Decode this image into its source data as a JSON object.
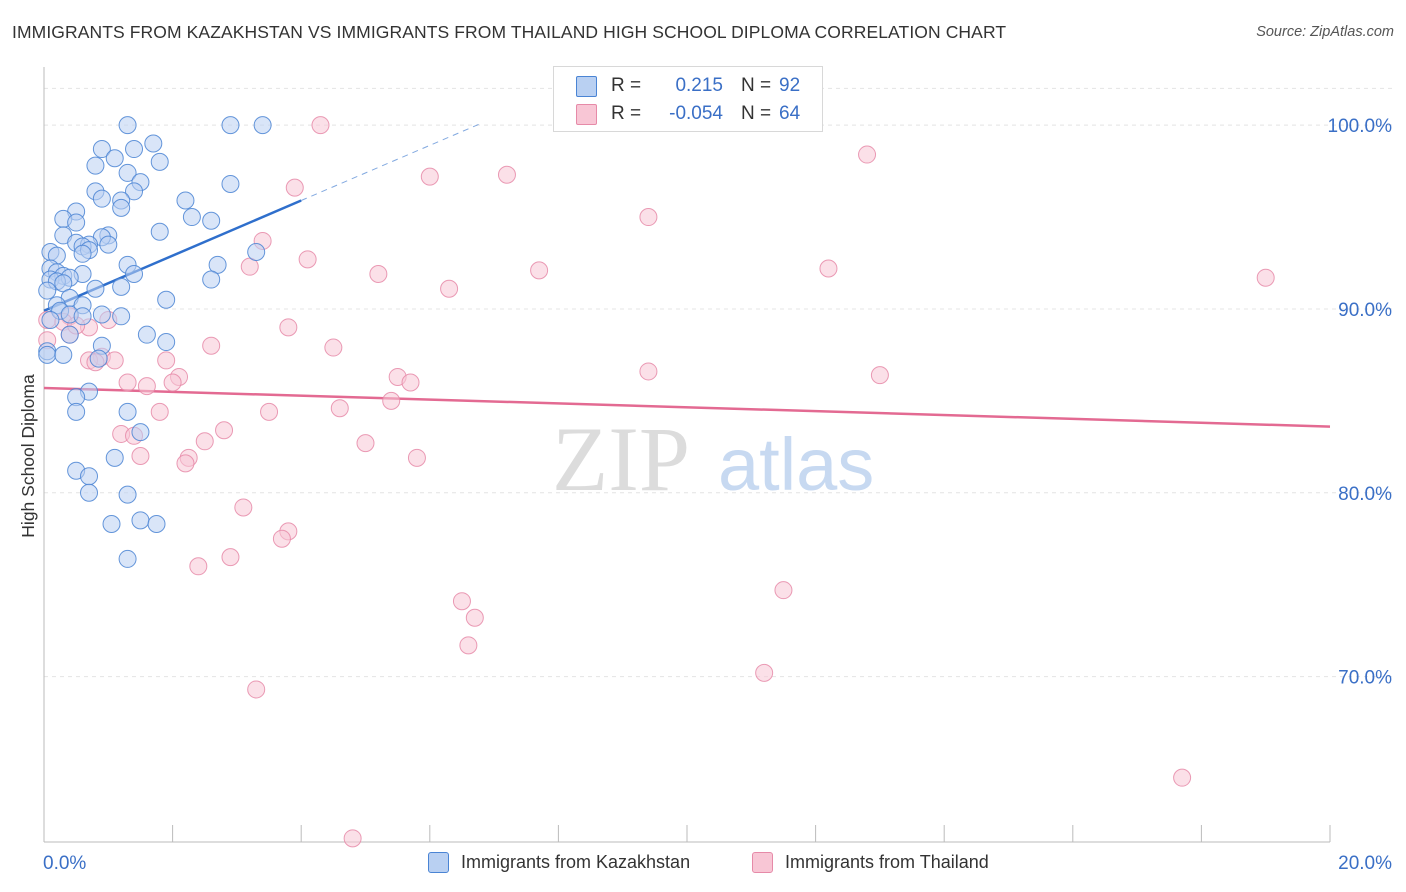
{
  "title": "IMMIGRANTS FROM KAZAKHSTAN VS IMMIGRANTS FROM THAILAND HIGH SCHOOL DIPLOMA CORRELATION CHART",
  "source": "Source: ZipAtlas.com",
  "watermark": {
    "zip": "ZIP",
    "atlas": "atlas"
  },
  "colors": {
    "blue_fill": "#b9d0f2",
    "blue_stroke": "#4a84d4",
    "blue_line": "#2f6fcc",
    "pink_fill": "#f8c6d5",
    "pink_stroke": "#e68aa8",
    "pink_line": "#e36a92",
    "axis_text": "#3a6fc6",
    "grid": "#e4e4e4"
  },
  "legend": {
    "rows": [
      {
        "r_label": "R =",
        "r_value": "0.215",
        "n_label": "N =",
        "n_value": "92"
      },
      {
        "r_label": "R =",
        "r_value": "-0.054",
        "n_label": "N =",
        "n_value": "64"
      }
    ]
  },
  "bottom_legend": [
    {
      "label": "Immigrants from Kazakhstan"
    },
    {
      "label": "Immigrants from Thailand"
    }
  ],
  "chart_data": {
    "type": "scatter",
    "title": "IMMIGRANTS FROM KAZAKHSTAN VS IMMIGRANTS FROM THAILAND HIGH SCHOOL DIPLOMA CORRELATION CHART",
    "xlabel": "",
    "ylabel": "High School Diploma",
    "xlim": [
      0,
      20
    ],
    "ylim": [
      61,
      103
    ],
    "x_tick_labels": [
      "0.0%",
      "20.0%"
    ],
    "y_ticks": [
      100,
      90,
      80,
      70
    ],
    "y_tick_labels": [
      "100.0%",
      "90.0%",
      "80.0%",
      "70.0%"
    ],
    "grid": true,
    "series": [
      {
        "name": "Immigrants from Kazakhstan",
        "R": 0.215,
        "N": 92,
        "trend": {
          "x0": 0.0,
          "y0": 89.9,
          "x1": 4.0,
          "y1": 95.9,
          "dash_to_x": 6.8,
          "dash_to_y": 100.1
        },
        "points": [
          [
            1.3,
            100
          ],
          [
            2.9,
            100
          ],
          [
            3.4,
            100
          ],
          [
            1.7,
            99
          ],
          [
            0.9,
            98.7
          ],
          [
            1.4,
            98.7
          ],
          [
            1.1,
            98.2
          ],
          [
            1.8,
            98
          ],
          [
            0.8,
            97.8
          ],
          [
            1.3,
            97.4
          ],
          [
            1.5,
            96.9
          ],
          [
            2.9,
            96.8
          ],
          [
            0.8,
            96.4
          ],
          [
            1.4,
            96.4
          ],
          [
            0.9,
            96
          ],
          [
            1.2,
            95.9
          ],
          [
            2.2,
            95.9
          ],
          [
            1.2,
            95.5
          ],
          [
            0.5,
            95.3
          ],
          [
            0.3,
            94.9
          ],
          [
            2.3,
            95
          ],
          [
            2.6,
            94.8
          ],
          [
            0.5,
            94.7
          ],
          [
            1.8,
            94.2
          ],
          [
            0.3,
            94
          ],
          [
            1.0,
            94
          ],
          [
            0.9,
            93.9
          ],
          [
            0.5,
            93.6
          ],
          [
            1.0,
            93.5
          ],
          [
            0.7,
            93.5
          ],
          [
            0.6,
            93.4
          ],
          [
            0.7,
            93.2
          ],
          [
            3.3,
            93.1
          ],
          [
            0.1,
            93.1
          ],
          [
            0.6,
            93
          ],
          [
            0.2,
            92.9
          ],
          [
            1.3,
            92.4
          ],
          [
            2.7,
            92.4
          ],
          [
            0.1,
            92.2
          ],
          [
            0.2,
            92
          ],
          [
            0.6,
            91.9
          ],
          [
            1.4,
            91.9
          ],
          [
            0.3,
            91.8
          ],
          [
            0.4,
            91.7
          ],
          [
            0.1,
            91.6
          ],
          [
            2.6,
            91.6
          ],
          [
            0.2,
            91.5
          ],
          [
            0.3,
            91.4
          ],
          [
            1.2,
            91.2
          ],
          [
            0.8,
            91.1
          ],
          [
            0.05,
            91
          ],
          [
            0.4,
            90.6
          ],
          [
            1.9,
            90.5
          ],
          [
            0.2,
            90.2
          ],
          [
            0.6,
            90.2
          ],
          [
            0.25,
            89.9
          ],
          [
            0.4,
            89.7
          ],
          [
            0.9,
            89.7
          ],
          [
            0.6,
            89.6
          ],
          [
            1.2,
            89.6
          ],
          [
            0.1,
            89.4
          ],
          [
            0.4,
            88.6
          ],
          [
            1.6,
            88.6
          ],
          [
            1.9,
            88.2
          ],
          [
            0.9,
            88
          ],
          [
            0.05,
            87.7
          ],
          [
            0.05,
            87.5
          ],
          [
            0.3,
            87.5
          ],
          [
            0.85,
            87.3
          ],
          [
            0.7,
            85.5
          ],
          [
            0.5,
            85.2
          ],
          [
            0.5,
            84.4
          ],
          [
            1.3,
            84.4
          ],
          [
            1.5,
            83.3
          ],
          [
            1.1,
            81.9
          ],
          [
            0.5,
            81.2
          ],
          [
            0.7,
            80.9
          ],
          [
            0.7,
            80
          ],
          [
            1.3,
            79.9
          ],
          [
            1.5,
            78.5
          ],
          [
            1.75,
            78.3
          ],
          [
            1.05,
            78.3
          ],
          [
            1.3,
            76.4
          ]
        ]
      },
      {
        "name": "Immigrants from Thailand",
        "R": -0.054,
        "N": 64,
        "trend": {
          "x0": 0.0,
          "y0": 85.7,
          "x1": 20.0,
          "y1": 83.6
        },
        "points": [
          [
            4.3,
            100
          ],
          [
            12.8,
            98.4
          ],
          [
            7.2,
            97.3
          ],
          [
            6.0,
            97.2
          ],
          [
            3.9,
            96.6
          ],
          [
            9.4,
            95
          ],
          [
            3.4,
            93.7
          ],
          [
            4.1,
            92.7
          ],
          [
            3.2,
            92.3
          ],
          [
            12.2,
            92.2
          ],
          [
            7.7,
            92.1
          ],
          [
            5.2,
            91.9
          ],
          [
            19.0,
            91.7
          ],
          [
            6.3,
            91.1
          ],
          [
            0.4,
            89.6
          ],
          [
            0.05,
            89.4
          ],
          [
            0.3,
            89.3
          ],
          [
            0.7,
            89
          ],
          [
            3.8,
            89
          ],
          [
            0.4,
            88.6
          ],
          [
            2.6,
            88
          ],
          [
            4.5,
            87.9
          ],
          [
            0.9,
            87.4
          ],
          [
            1.1,
            87.2
          ],
          [
            0.7,
            87.2
          ],
          [
            0.8,
            87.1
          ],
          [
            1.9,
            87.2
          ],
          [
            9.4,
            86.6
          ],
          [
            2.1,
            86.3
          ],
          [
            13.0,
            86.4
          ],
          [
            5.5,
            86.3
          ],
          [
            5.7,
            86
          ],
          [
            1.3,
            86
          ],
          [
            1.6,
            85.8
          ],
          [
            2.0,
            86
          ],
          [
            5.4,
            85
          ],
          [
            4.6,
            84.6
          ],
          [
            1.8,
            84.4
          ],
          [
            3.5,
            84.4
          ],
          [
            1.2,
            83.2
          ],
          [
            2.8,
            83.4
          ],
          [
            1.4,
            83.1
          ],
          [
            2.5,
            82.8
          ],
          [
            5.0,
            82.7
          ],
          [
            1.5,
            82
          ],
          [
            2.25,
            81.9
          ],
          [
            2.2,
            81.6
          ],
          [
            5.8,
            81.9
          ],
          [
            3.1,
            79.2
          ],
          [
            3.8,
            77.9
          ],
          [
            3.7,
            77.5
          ],
          [
            2.9,
            76.5
          ],
          [
            2.4,
            76
          ],
          [
            11.5,
            74.7
          ],
          [
            6.5,
            74.1
          ],
          [
            6.7,
            73.2
          ],
          [
            6.6,
            71.7
          ],
          [
            11.2,
            70.2
          ],
          [
            3.3,
            69.3
          ],
          [
            17.7,
            64.5
          ],
          [
            4.8,
            61.2
          ],
          [
            0.05,
            88.3
          ],
          [
            0.5,
            89.1
          ],
          [
            1.0,
            89.4
          ]
        ]
      }
    ]
  }
}
